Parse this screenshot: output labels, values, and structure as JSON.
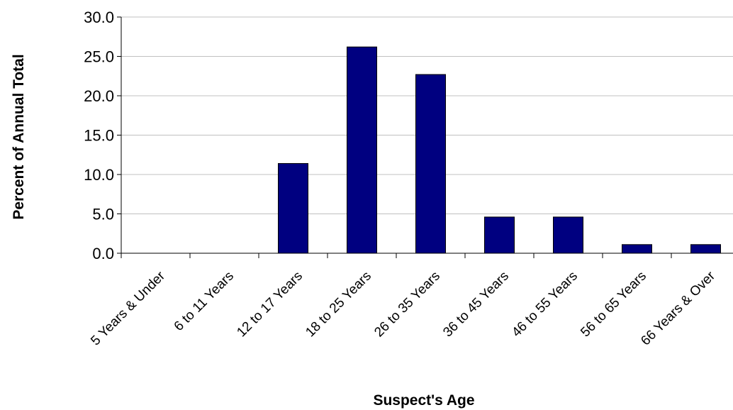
{
  "chart_data": {
    "type": "bar",
    "title": "",
    "xlabel": "Suspect's Age",
    "ylabel": "Percent of Annual Total",
    "categories": [
      "5 Years & Under",
      "6 to 11 Years",
      "12 to 17 Years",
      "18 to 25 Years",
      "26 to 35 Years",
      "36 to 45 Years",
      "46 to 55 Years",
      "56 to 65 Years",
      "66 Years & Over"
    ],
    "values": [
      0.0,
      0.0,
      11.4,
      26.2,
      22.7,
      4.6,
      4.6,
      1.1,
      1.1
    ],
    "ylim": [
      0,
      30
    ],
    "yticks": [
      "0.0",
      "5.0",
      "10.0",
      "15.0",
      "20.0",
      "25.0",
      "30.0"
    ],
    "grid": true,
    "legend": "none",
    "colors": {
      "bar": "#000080",
      "grid": "#c0c0c0",
      "axis": "#000000"
    }
  }
}
